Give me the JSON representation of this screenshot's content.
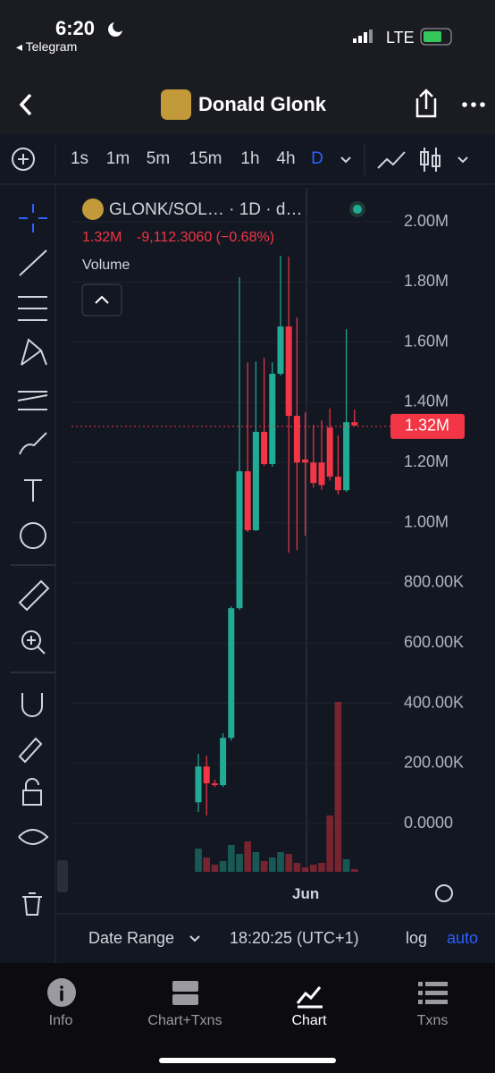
{
  "status": {
    "time": "6:20",
    "back_app": "Telegram",
    "network": "LTE"
  },
  "nav": {
    "title": "Donald Glonk"
  },
  "toolbar": {
    "intervals": [
      "1s",
      "1m",
      "5m",
      "15m",
      "1h",
      "4h",
      "D"
    ]
  },
  "chart_data": {
    "type": "candlestick",
    "title": "GLONK/SOL… · 1D · d…",
    "legend_price": "1.32M",
    "legend_change": "-9,112.3060 (−0.68%)",
    "volume_label": "Volume",
    "x_label": "Jun",
    "up_color": "#22ab94",
    "down_color": "#f23645",
    "open": [
      71000,
      190000,
      134000,
      128000,
      285000,
      716000,
      1171000,
      975000,
      1302000,
      1195000,
      1495000,
      1652000,
      1355000,
      1210000,
      1200000,
      1200000,
      1316000,
      1153000,
      1108000,
      1334000
    ],
    "high": [
      232000,
      226000,
      146000,
      300000,
      722000,
      1816000,
      1533000,
      1536000,
      1548000,
      1533000,
      1887000,
      1884000,
      1682000,
      1367000,
      1325000,
      1340000,
      1380000,
      1290000,
      1643000,
      1376000
    ],
    "low": [
      39000,
      27000,
      122000,
      122000,
      276000,
      710000,
      969000,
      972000,
      1189000,
      1186000,
      1489000,
      900000,
      909000,
      957000,
      1117000,
      1110000,
      1140000,
      1094000,
      1102000,
      1323000
    ],
    "close": [
      190000,
      134000,
      128000,
      285000,
      716000,
      1171000,
      975000,
      1302000,
      1195000,
      1495000,
      1652000,
      1355000,
      1200000,
      1200000,
      1132000,
      1125000,
      1153000,
      1108000,
      1334000,
      1323000
    ],
    "volume": [
      26,
      16,
      8,
      12,
      30,
      20,
      34,
      22,
      12,
      16,
      22,
      20,
      10,
      5,
      8,
      10,
      63,
      190,
      14,
      3
    ],
    "ylim": [
      -160000,
      2113000
    ],
    "yticks": [
      {
        "value": 2000000,
        "label": "2.00M"
      },
      {
        "value": 1800000,
        "label": "1.80M"
      },
      {
        "value": 1600000,
        "label": "1.60M"
      },
      {
        "value": 1400000,
        "label": "1.40M"
      },
      {
        "value": 1200000,
        "label": "1.20M"
      },
      {
        "value": 1000000,
        "label": "1.00M"
      },
      {
        "value": 800000,
        "label": "800.00K"
      },
      {
        "value": 600000,
        "label": "600.00K"
      },
      {
        "value": 400000,
        "label": "400.00K"
      },
      {
        "value": 200000,
        "label": "200.00K"
      },
      {
        "value": 0,
        "label": "0.0000"
      }
    ],
    "last_price": {
      "value": 1320000,
      "label": "1.32M"
    },
    "grid": true
  },
  "bottom_bar": {
    "date_range": "Date Range",
    "clock": "18:20:25 (UTC+1)",
    "log": "log",
    "auto": "auto"
  },
  "tabs": [
    "Info",
    "Chart+Txns",
    "Chart",
    "Txns"
  ]
}
